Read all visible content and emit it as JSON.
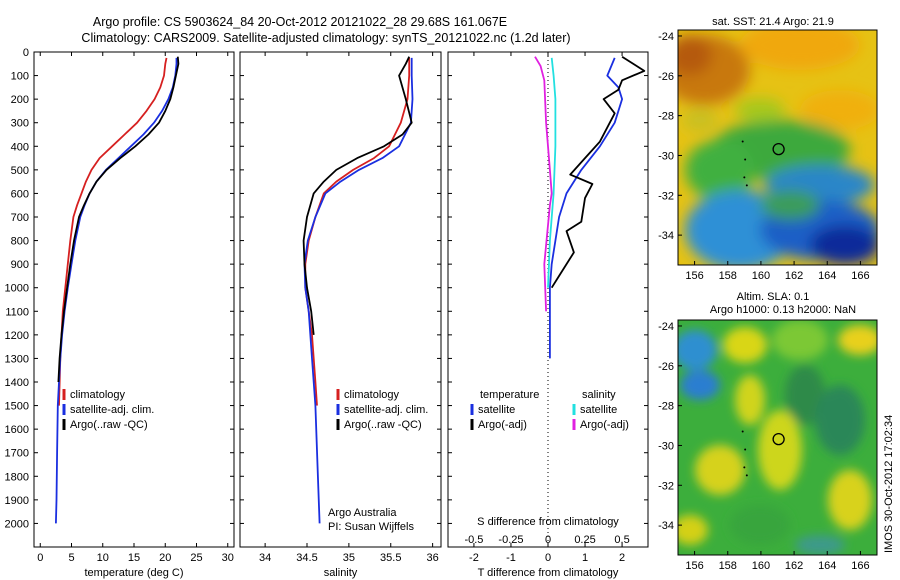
{
  "header": {
    "title_line1": "Argo profile: CS 5903624_84 20-Oct-2012 20121022_28 29.68S 161.067E",
    "title_line2": "Climatology: CARS2009. Satellite-adjusted climatology: synTS_20121022.nc (1.2d later)"
  },
  "footer": {
    "credit_org": "Argo Australia",
    "credit_pi": "PI: Susan Wijffels",
    "timestamp": "IMOS 30-Oct-2012 17:02:34"
  },
  "colors": {
    "climatology": "#d62020",
    "satellite": "#1a2fe0",
    "argo": "#000000",
    "sat_salinity": "#22e0e0",
    "argo_salinity_adj": "#e020e0"
  },
  "chart_data": [
    {
      "type": "line",
      "panel": "temperature",
      "xlabel": "temperature (deg C)",
      "ylabel": "",
      "xlim": [
        -1,
        31
      ],
      "ylim": [
        2100,
        0
      ],
      "xticks": [
        0,
        5,
        10,
        15,
        20,
        25,
        30
      ],
      "yticks": [
        0,
        100,
        200,
        300,
        400,
        500,
        600,
        700,
        800,
        900,
        1000,
        1100,
        1200,
        1300,
        1400,
        1500,
        1600,
        1700,
        1800,
        1900,
        2000
      ],
      "legend": [
        "climatology",
        "satellite-adj. clim.",
        "Argo(..raw -QC)"
      ],
      "series": [
        {
          "name": "climatology",
          "x": [
            20.2,
            20.0,
            19.8,
            19.2,
            18.3,
            17.0,
            15.5,
            13.5,
            11.5,
            9.5,
            8.2,
            7.3,
            6.6,
            5.9,
            5.3,
            4.8,
            4.4,
            4.0,
            3.6,
            3.2,
            3.0
          ],
          "y": [
            25,
            50,
            100,
            150,
            200,
            250,
            300,
            350,
            400,
            450,
            500,
            550,
            600,
            650,
            700,
            800,
            900,
            1000,
            1100,
            1300,
            1500
          ]
        },
        {
          "name": "satellite-adj. clim.",
          "x": [
            21.8,
            21.8,
            21.6,
            21.2,
            20.5,
            19.5,
            18.2,
            16.5,
            14.5,
            12.5,
            10.5,
            9.0,
            7.9,
            7.1,
            6.4,
            5.6,
            5.0,
            4.4,
            3.9,
            3.5,
            3.2,
            3.0,
            2.8,
            2.7,
            2.6,
            2.5
          ],
          "y": [
            25,
            50,
            100,
            150,
            200,
            250,
            300,
            350,
            400,
            450,
            500,
            550,
            600,
            650,
            700,
            800,
            900,
            1000,
            1100,
            1200,
            1300,
            1400,
            1500,
            1700,
            1900,
            2000
          ]
        },
        {
          "name": "Argo(..raw -QC)",
          "x": [
            22.0,
            22.1,
            21.7,
            21.3,
            20.8,
            20.0,
            19.0,
            17.3,
            15.2,
            12.8,
            10.6,
            9.0,
            7.9,
            7.0,
            6.2,
            5.4,
            4.8,
            4.3,
            3.8,
            3.4,
            3.1,
            2.9
          ],
          "y": [
            20,
            50,
            100,
            150,
            200,
            250,
            300,
            350,
            400,
            450,
            500,
            550,
            600,
            650,
            700,
            800,
            900,
            1000,
            1100,
            1200,
            1300,
            1400
          ]
        }
      ]
    },
    {
      "type": "line",
      "panel": "salinity",
      "xlabel": "salinity",
      "ylabel": "",
      "xlim": [
        33.7,
        36.1
      ],
      "ylim": [
        2100,
        0
      ],
      "xticks": [
        34,
        34.5,
        35,
        35.5,
        36
      ],
      "legend": [
        "climatology",
        "satellite-adj. clim.",
        "Argo(..raw -QC)"
      ],
      "series": [
        {
          "name": "climatology",
          "x": [
            35.72,
            35.72,
            35.7,
            35.62,
            35.48,
            35.3,
            35.05,
            34.85,
            34.7,
            34.6,
            34.52,
            34.48,
            34.48,
            34.52,
            34.56,
            34.6,
            34.62
          ],
          "y": [
            25,
            100,
            200,
            300,
            400,
            450,
            500,
            550,
            600,
            700,
            800,
            900,
            1000,
            1100,
            1200,
            1400,
            1500
          ]
        },
        {
          "name": "satellite-adj. clim.",
          "x": [
            35.75,
            35.75,
            35.76,
            35.74,
            35.6,
            35.4,
            35.12,
            34.9,
            34.72,
            34.6,
            34.51,
            34.47,
            34.48,
            34.52,
            34.56,
            34.6,
            34.63,
            34.65
          ],
          "y": [
            25,
            100,
            200,
            300,
            400,
            450,
            500,
            550,
            600,
            700,
            800,
            900,
            1000,
            1100,
            1300,
            1500,
            1800,
            2000
          ]
        },
        {
          "name": "Argo(..raw -QC)",
          "x": [
            35.72,
            35.68,
            35.6,
            35.68,
            35.75,
            35.64,
            35.42,
            35.1,
            34.85,
            34.7,
            34.58,
            34.5,
            34.46,
            34.47,
            34.5,
            34.55,
            34.58
          ],
          "y": [
            20,
            50,
            100,
            200,
            300,
            350,
            400,
            450,
            500,
            550,
            600,
            700,
            800,
            900,
            1000,
            1100,
            1200
          ]
        }
      ]
    },
    {
      "type": "line",
      "panel": "difference",
      "xlabel": "T difference from climatology",
      "x2label": "S difference from climatology",
      "xlim": [
        -2.7,
        2.7
      ],
      "ylim": [
        2100,
        0
      ],
      "xticks": [
        -2,
        -1,
        0,
        1,
        2
      ],
      "x2ticks": [
        "-0.5",
        "-0.25",
        "0",
        "0.25",
        "0.5"
      ],
      "legend": [
        "temperature",
        "satellite",
        "Argo(-adj)",
        "salinity",
        "satellite",
        "Argo(-adj)"
      ],
      "series": [
        {
          "name": "satellite",
          "group": "temperature",
          "x": [
            1.8,
            1.6,
            1.9,
            2.0,
            1.8,
            1.4,
            0.9,
            0.5,
            0.3,
            0.2,
            0.1,
            0.05,
            0.05,
            0.05,
            0.05
          ],
          "y": [
            25,
            100,
            150,
            200,
            300,
            400,
            500,
            600,
            700,
            800,
            900,
            1000,
            1100,
            1200,
            1300
          ]
        },
        {
          "name": "Argo(-adj)",
          "group": "temperature",
          "x": [
            2.0,
            2.6,
            2.0,
            1.9,
            1.5,
            1.8,
            1.6,
            1.4,
            1.0,
            0.6,
            1.2,
            1.0,
            0.9,
            0.5,
            0.7,
            0.3,
            0.1
          ],
          "y": [
            20,
            80,
            120,
            160,
            200,
            260,
            320,
            380,
            450,
            520,
            560,
            620,
            720,
            760,
            850,
            950,
            1000
          ]
        },
        {
          "name": "satellite",
          "group": "salinity",
          "x": [
            0.1,
            0.15,
            0.2,
            0.2,
            0.15,
            0.05,
            0.0
          ],
          "y": [
            25,
            100,
            200,
            400,
            600,
            800,
            1000
          ]
        },
        {
          "name": "Argo(-adj)",
          "group": "salinity",
          "x": [
            -0.35,
            -0.2,
            -0.1,
            -0.05,
            0.05,
            0.1,
            0.05,
            -0.1,
            -0.05
          ],
          "y": [
            20,
            60,
            120,
            300,
            500,
            600,
            650,
            900,
            1100
          ]
        }
      ]
    },
    {
      "type": "heatmap",
      "panel": "sst_map",
      "title": "sat. SST: 21.4 Argo: 21.9",
      "xlim": [
        155,
        167
      ],
      "ylim": [
        -35.5,
        -23.7
      ],
      "xticks": [
        156,
        158,
        160,
        162,
        164,
        166
      ],
      "yticks": [
        -24,
        -26,
        -28,
        -30,
        -32,
        -34
      ],
      "argo_position": {
        "lon": 161.067,
        "lat": -29.68
      }
    },
    {
      "type": "heatmap",
      "panel": "sla_map",
      "title": "Altim. SLA: 0.1",
      "title2": "Argo h1000: 0.13 h2000: NaN",
      "xlim": [
        155,
        167
      ],
      "ylim": [
        -35.5,
        -23.7
      ],
      "xticks": [
        156,
        158,
        160,
        162,
        164,
        166
      ],
      "yticks": [
        -24,
        -26,
        -28,
        -30,
        -32,
        -34
      ],
      "argo_position": {
        "lon": 161.067,
        "lat": -29.68
      }
    }
  ]
}
